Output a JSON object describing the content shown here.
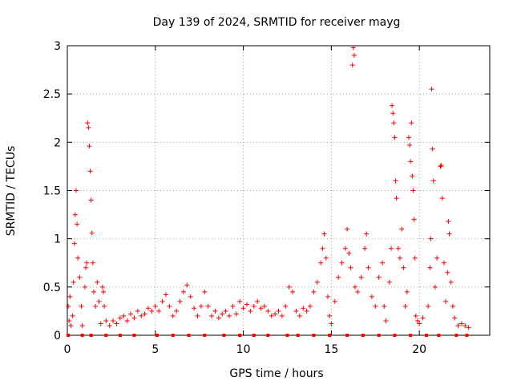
{
  "chart_data": {
    "type": "scatter",
    "title": "Day 139 of 2024, SRMTID for receiver mayg",
    "xlabel": "GPS time / hours",
    "ylabel": "SRMTID / TECUs",
    "xlim": [
      0,
      24
    ],
    "ylim": [
      0,
      3
    ],
    "x_ticks": [
      0,
      5,
      10,
      15,
      20
    ],
    "y_ticks": [
      0,
      0.5,
      1,
      1.5,
      2,
      2.5,
      3
    ],
    "x_tick_labels": [
      "0",
      "5",
      "10",
      "15",
      "20"
    ],
    "y_tick_labels": [
      "0",
      "0.5",
      "1",
      "1.5",
      "2",
      "2.5",
      "3"
    ],
    "grid": true,
    "marker": "+",
    "marker_color": "#ff0000",
    "series": [
      {
        "name": "SRMTID",
        "points": [
          [
            0.05,
            0.3
          ],
          [
            0.1,
            0.15
          ],
          [
            0.15,
            0.4
          ],
          [
            0.2,
            0.1
          ],
          [
            0.3,
            0.2
          ],
          [
            0.35,
            0.55
          ],
          [
            0.4,
            0.95
          ],
          [
            0.45,
            1.25
          ],
          [
            0.5,
            1.5
          ],
          [
            0.55,
            1.15
          ],
          [
            0.6,
            0.8
          ],
          [
            0.7,
            0.6
          ],
          [
            0.8,
            0.3
          ],
          [
            0.85,
            0.1
          ],
          [
            1.0,
            0.5
          ],
          [
            1.05,
            0.7
          ],
          [
            1.1,
            0.75
          ],
          [
            1.15,
            2.2
          ],
          [
            1.2,
            2.15
          ],
          [
            1.25,
            1.96
          ],
          [
            1.3,
            1.7
          ],
          [
            1.35,
            1.4
          ],
          [
            1.4,
            1.06
          ],
          [
            1.45,
            0.75
          ],
          [
            1.5,
            0.45
          ],
          [
            1.6,
            0.3
          ],
          [
            1.7,
            0.55
          ],
          [
            1.8,
            0.35
          ],
          [
            1.9,
            0.12
          ],
          [
            2.0,
            0.5
          ],
          [
            2.05,
            0.45
          ],
          [
            2.1,
            0.3
          ],
          [
            2.2,
            0.15
          ],
          [
            2.4,
            0.1
          ],
          [
            2.6,
            0.15
          ],
          [
            2.8,
            0.12
          ],
          [
            3.0,
            0.18
          ],
          [
            3.2,
            0.2
          ],
          [
            3.4,
            0.15
          ],
          [
            3.6,
            0.22
          ],
          [
            3.8,
            0.18
          ],
          [
            4.0,
            0.25
          ],
          [
            4.2,
            0.2
          ],
          [
            4.4,
            0.22
          ],
          [
            4.6,
            0.28
          ],
          [
            4.8,
            0.25
          ],
          [
            5.0,
            0.3
          ],
          [
            5.2,
            0.25
          ],
          [
            5.4,
            0.35
          ],
          [
            5.6,
            0.42
          ],
          [
            5.8,
            0.3
          ],
          [
            6.0,
            0.2
          ],
          [
            6.2,
            0.25
          ],
          [
            6.4,
            0.35
          ],
          [
            6.6,
            0.45
          ],
          [
            6.8,
            0.52
          ],
          [
            7.0,
            0.4
          ],
          [
            7.2,
            0.28
          ],
          [
            7.4,
            0.2
          ],
          [
            7.6,
            0.3
          ],
          [
            7.8,
            0.45
          ],
          [
            8.0,
            0.3
          ],
          [
            8.2,
            0.2
          ],
          [
            8.4,
            0.25
          ],
          [
            8.6,
            0.18
          ],
          [
            8.8,
            0.22
          ],
          [
            9.0,
            0.25
          ],
          [
            9.2,
            0.2
          ],
          [
            9.4,
            0.3
          ],
          [
            9.6,
            0.22
          ],
          [
            9.8,
            0.35
          ],
          [
            10.0,
            0.28
          ],
          [
            10.2,
            0.32
          ],
          [
            10.4,
            0.25
          ],
          [
            10.6,
            0.3
          ],
          [
            10.8,
            0.35
          ],
          [
            11.0,
            0.28
          ],
          [
            11.2,
            0.3
          ],
          [
            11.4,
            0.25
          ],
          [
            11.6,
            0.2
          ],
          [
            11.8,
            0.22
          ],
          [
            12.0,
            0.25
          ],
          [
            12.2,
            0.2
          ],
          [
            12.4,
            0.3
          ],
          [
            12.6,
            0.5
          ],
          [
            12.8,
            0.45
          ],
          [
            13.0,
            0.25
          ],
          [
            13.2,
            0.2
          ],
          [
            13.4,
            0.28
          ],
          [
            13.6,
            0.25
          ],
          [
            13.8,
            0.3
          ],
          [
            14.0,
            0.45
          ],
          [
            14.2,
            0.55
          ],
          [
            14.4,
            0.75
          ],
          [
            14.5,
            0.9
          ],
          [
            14.6,
            1.05
          ],
          [
            14.7,
            0.8
          ],
          [
            14.8,
            0.4
          ],
          [
            14.9,
            0.2
          ],
          [
            15.0,
            0.12
          ],
          [
            15.2,
            0.35
          ],
          [
            15.4,
            0.6
          ],
          [
            15.6,
            0.75
          ],
          [
            15.8,
            0.9
          ],
          [
            15.9,
            1.1
          ],
          [
            16.0,
            0.85
          ],
          [
            16.1,
            0.7
          ],
          [
            16.2,
            2.8
          ],
          [
            16.25,
            2.98
          ],
          [
            16.3,
            2.9
          ],
          [
            16.35,
            0.5
          ],
          [
            16.5,
            0.45
          ],
          [
            16.7,
            0.6
          ],
          [
            16.9,
            0.9
          ],
          [
            17.0,
            1.05
          ],
          [
            17.1,
            0.7
          ],
          [
            17.3,
            0.4
          ],
          [
            17.5,
            0.3
          ],
          [
            17.7,
            0.6
          ],
          [
            17.9,
            0.75
          ],
          [
            18.0,
            0.3
          ],
          [
            18.1,
            0.15
          ],
          [
            18.3,
            0.55
          ],
          [
            18.4,
            0.9
          ],
          [
            18.45,
            2.38
          ],
          [
            18.5,
            2.3
          ],
          [
            18.55,
            2.2
          ],
          [
            18.6,
            2.05
          ],
          [
            18.65,
            1.6
          ],
          [
            18.7,
            1.42
          ],
          [
            18.8,
            0.9
          ],
          [
            18.9,
            0.8
          ],
          [
            19.0,
            1.1
          ],
          [
            19.1,
            0.7
          ],
          [
            19.2,
            0.3
          ],
          [
            19.3,
            0.45
          ],
          [
            19.4,
            2.05
          ],
          [
            19.45,
            1.97
          ],
          [
            19.5,
            1.8
          ],
          [
            19.55,
            2.2
          ],
          [
            19.6,
            1.65
          ],
          [
            19.65,
            1.5
          ],
          [
            19.7,
            1.2
          ],
          [
            19.75,
            0.8
          ],
          [
            19.8,
            0.2
          ],
          [
            19.9,
            0.15
          ],
          [
            20.0,
            0.12
          ],
          [
            20.2,
            0.18
          ],
          [
            20.5,
            0.3
          ],
          [
            20.6,
            0.7
          ],
          [
            20.65,
            1.0
          ],
          [
            20.7,
            2.55
          ],
          [
            20.75,
            1.93
          ],
          [
            20.8,
            1.6
          ],
          [
            20.9,
            0.5
          ],
          [
            21.0,
            0.8
          ],
          [
            21.2,
            1.75
          ],
          [
            21.25,
            1.76
          ],
          [
            21.3,
            1.42
          ],
          [
            21.4,
            0.75
          ],
          [
            21.5,
            0.35
          ],
          [
            21.6,
            0.65
          ],
          [
            21.65,
            1.18
          ],
          [
            21.7,
            1.05
          ],
          [
            21.8,
            0.55
          ],
          [
            21.9,
            0.3
          ],
          [
            22.0,
            0.18
          ],
          [
            22.2,
            0.1
          ],
          [
            22.4,
            0.12
          ],
          [
            22.6,
            0.1
          ],
          [
            22.8,
            0.08
          ]
        ]
      }
    ],
    "zero_markers_x": [
      0.05,
      0.85,
      1.35,
      2.2,
      3.0,
      3.8,
      5.1,
      6.0,
      6.9,
      7.8,
      8.9,
      9.8,
      10.6,
      11.4,
      12.5,
      13.1,
      14.0,
      14.9,
      15.9,
      16.8,
      17.7,
      18.6,
      19.5,
      20.4,
      21.1,
      22.1,
      22.7
    ]
  }
}
